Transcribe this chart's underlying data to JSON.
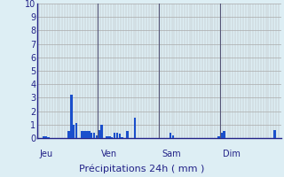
{
  "background_color": "#ddeef4",
  "bar_color": "#1a4fcc",
  "grid_color_h": "#aaaaaa",
  "grid_color_v": "#aaaaaa",
  "separator_color": "#555577",
  "axis_line_color": "#222288",
  "text_color": "#222288",
  "ylim": [
    0,
    10
  ],
  "yticks": [
    0,
    1,
    2,
    3,
    4,
    5,
    6,
    7,
    8,
    9,
    10
  ],
  "day_labels": [
    "Jeu",
    "Ven",
    "Sam",
    "Dim"
  ],
  "day_positions": [
    0,
    24,
    48,
    72
  ],
  "xlabel": "Précipitations 24h ( mm )",
  "values": [
    0.0,
    0.0,
    0.15,
    0.1,
    0.05,
    0.0,
    0.0,
    0.0,
    0.0,
    0.0,
    0.0,
    0.0,
    0.5,
    3.2,
    1.0,
    1.1,
    0.0,
    0.5,
    0.5,
    0.5,
    0.5,
    0.4,
    0.4,
    0.2,
    0.6,
    1.0,
    0.0,
    0.1,
    0.1,
    0.05,
    0.4,
    0.4,
    0.3,
    0.05,
    0.0,
    0.5,
    0.0,
    0.0,
    1.5,
    0.0,
    0.0,
    0.0,
    0.0,
    0.0,
    0.0,
    0.0,
    0.0,
    0.0,
    0.0,
    0.0,
    0.0,
    0.0,
    0.4,
    0.2,
    0.0,
    0.0,
    0.0,
    0.0,
    0.0,
    0.0,
    0.0,
    0.0,
    0.0,
    0.0,
    0.0,
    0.0,
    0.0,
    0.0,
    0.0,
    0.0,
    0.0,
    0.1,
    0.4,
    0.5,
    0.0,
    0.0,
    0.0,
    0.0,
    0.0,
    0.0,
    0.0,
    0.0,
    0.0,
    0.0,
    0.0,
    0.0,
    0.0,
    0.0,
    0.0,
    0.0,
    0.0,
    0.0,
    0.0,
    0.6,
    0.0,
    0.0
  ],
  "n_bars": 96
}
